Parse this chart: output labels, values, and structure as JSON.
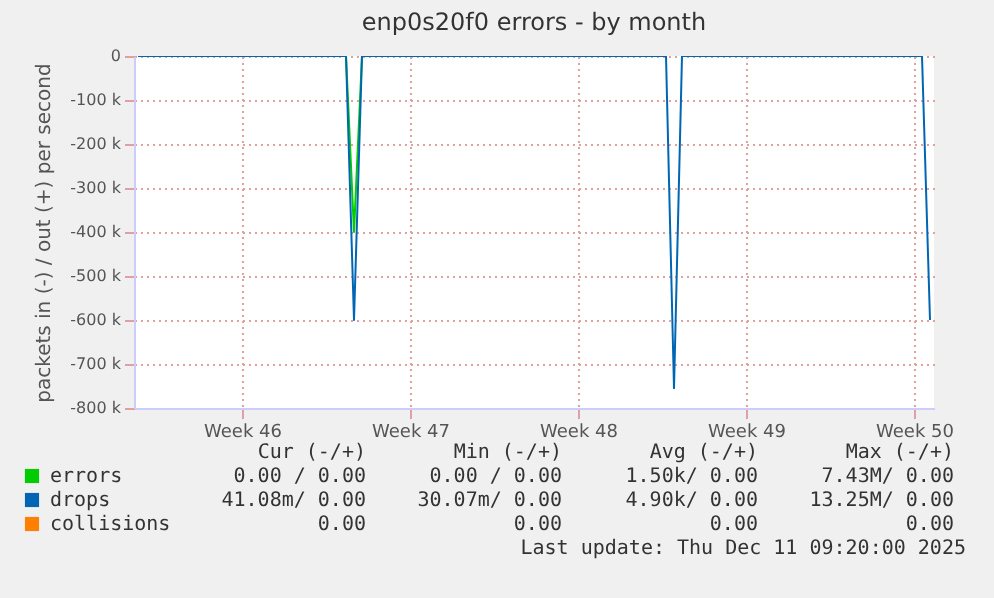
{
  "chart_data": {
    "type": "line",
    "title": "enp0s20f0 errors - by month",
    "ylabel": "packets in (-) / out (+) per second",
    "categories": [
      null,
      null,
      null,
      null,
      null,
      null,
      null,
      null,
      null,
      null,
      null,
      null,
      null,
      "Week 46",
      null,
      null,
      null,
      null,
      null,
      null,
      null,
      null,
      null,
      null,
      null,
      null,
      null,
      null,
      null,
      null,
      null,
      null,
      null,
      null,
      "Week 47",
      null,
      null,
      null,
      null,
      null,
      null,
      null,
      null,
      null,
      null,
      null,
      null,
      null,
      null,
      null,
      null,
      null,
      null,
      null,
      null,
      "Week 48",
      null,
      null,
      null,
      null,
      null,
      null,
      null,
      null,
      null,
      null,
      null,
      null,
      null,
      null,
      null,
      null,
      null,
      null,
      null,
      null,
      "Week 49",
      null,
      null,
      null,
      null,
      null,
      null,
      null,
      null,
      null,
      null,
      null,
      null,
      null,
      null,
      null,
      null,
      null,
      null,
      null,
      null,
      "Week 50",
      null,
      null
    ],
    "ylim": [
      -800000,
      0
    ],
    "yticks": [
      {
        "value": -800000,
        "label": "-800 k"
      },
      {
        "value": -700000,
        "label": "-700 k"
      },
      {
        "value": -600000,
        "label": "-600 k"
      },
      {
        "value": -500000,
        "label": "-500 k"
      },
      {
        "value": -400000,
        "label": "-400 k"
      },
      {
        "value": -300000,
        "label": "-300 k"
      },
      {
        "value": -200000,
        "label": "-200 k"
      },
      {
        "value": -100000,
        "label": "-100 k"
      },
      0
    ],
    "grid": true,
    "legend": "bottom left",
    "series": [
      {
        "name": "errors",
        "color": "#00cc00",
        "values": [
          null,
          null,
          null,
          null,
          null,
          null,
          null,
          null,
          null,
          null,
          null,
          null,
          null,
          null,
          null,
          null,
          null,
          null,
          null,
          null,
          null,
          null,
          null,
          null,
          null,
          null,
          0,
          -400000,
          0,
          null,
          null,
          null,
          null,
          null,
          null,
          null,
          null,
          null,
          null,
          null,
          null,
          null,
          null,
          null,
          null,
          null,
          null,
          null,
          null,
          null,
          null,
          null,
          null,
          null,
          null,
          null,
          null,
          null,
          null,
          null,
          null,
          null,
          null,
          null,
          null,
          null,
          null,
          null,
          null,
          null,
          null,
          null,
          null,
          null,
          null,
          null,
          null,
          null,
          null,
          null,
          null,
          null,
          null,
          null,
          null,
          null,
          null,
          null,
          null,
          null,
          null,
          null,
          null,
          null,
          null,
          null,
          null,
          null,
          null,
          null
        ]
      },
      {
        "name": "drops",
        "color": "#0066b3",
        "values": [
          0,
          0,
          0,
          0,
          0,
          0,
          0,
          0,
          0,
          0,
          0,
          0,
          0,
          0,
          0,
          0,
          0,
          0,
          0,
          0,
          0,
          0,
          0,
          0,
          0,
          0,
          0,
          -600000,
          0,
          0,
          0,
          0,
          0,
          0,
          0,
          0,
          0,
          0,
          0,
          0,
          0,
          0,
          0,
          0,
          0,
          0,
          0,
          0,
          0,
          0,
          0,
          0,
          0,
          0,
          0,
          0,
          0,
          0,
          0,
          0,
          0,
          0,
          0,
          0,
          0,
          0,
          0,
          -755000,
          0,
          0,
          0,
          0,
          0,
          0,
          0,
          0,
          0,
          0,
          0,
          0,
          0,
          0,
          0,
          0,
          0,
          0,
          0,
          0,
          0,
          0,
          0,
          0,
          0,
          0,
          0,
          0,
          0,
          0,
          0,
          -600000
        ]
      },
      {
        "name": "collisions",
        "color": "#ff8000",
        "values": [
          null,
          null,
          null,
          null,
          null,
          null,
          null,
          null,
          null,
          null,
          null,
          null,
          null,
          null,
          null,
          null,
          null,
          null,
          null,
          null,
          null,
          null,
          null,
          null,
          null,
          null,
          null,
          null,
          null,
          null,
          null,
          null,
          null,
          null,
          null,
          null,
          null,
          null,
          null,
          null,
          null,
          null,
          null,
          null,
          null,
          null,
          null,
          null,
          null,
          null,
          null,
          null,
          null,
          null,
          null,
          null,
          null,
          null,
          null,
          null,
          null,
          null,
          null,
          null,
          null,
          null,
          null,
          null,
          null,
          null,
          null,
          null,
          null,
          null,
          null,
          null,
          null,
          null,
          null,
          null,
          null,
          null,
          null,
          null,
          null,
          null,
          null,
          null,
          null,
          null,
          null,
          null,
          null,
          null,
          null,
          null,
          null,
          null,
          null,
          null
        ]
      }
    ],
    "annotations": [
      "Cur (-/+)",
      "Min (-/+)",
      "Avg (-/+)",
      "Max (-/+)",
      "0.00 / 0.00",
      "0.00 / 0.00",
      "1.50k/ 0.00",
      "7.43M/ 0.00",
      "41.08m/ 0.00",
      "30.07m/ 0.00",
      "4.90k/ 0.00",
      "13.25M/ 0.00",
      "0.00",
      "0.00",
      "0.00",
      "0.00",
      "Last update: Thu Dec 11 09:20:00 2025"
    ]
  }
}
